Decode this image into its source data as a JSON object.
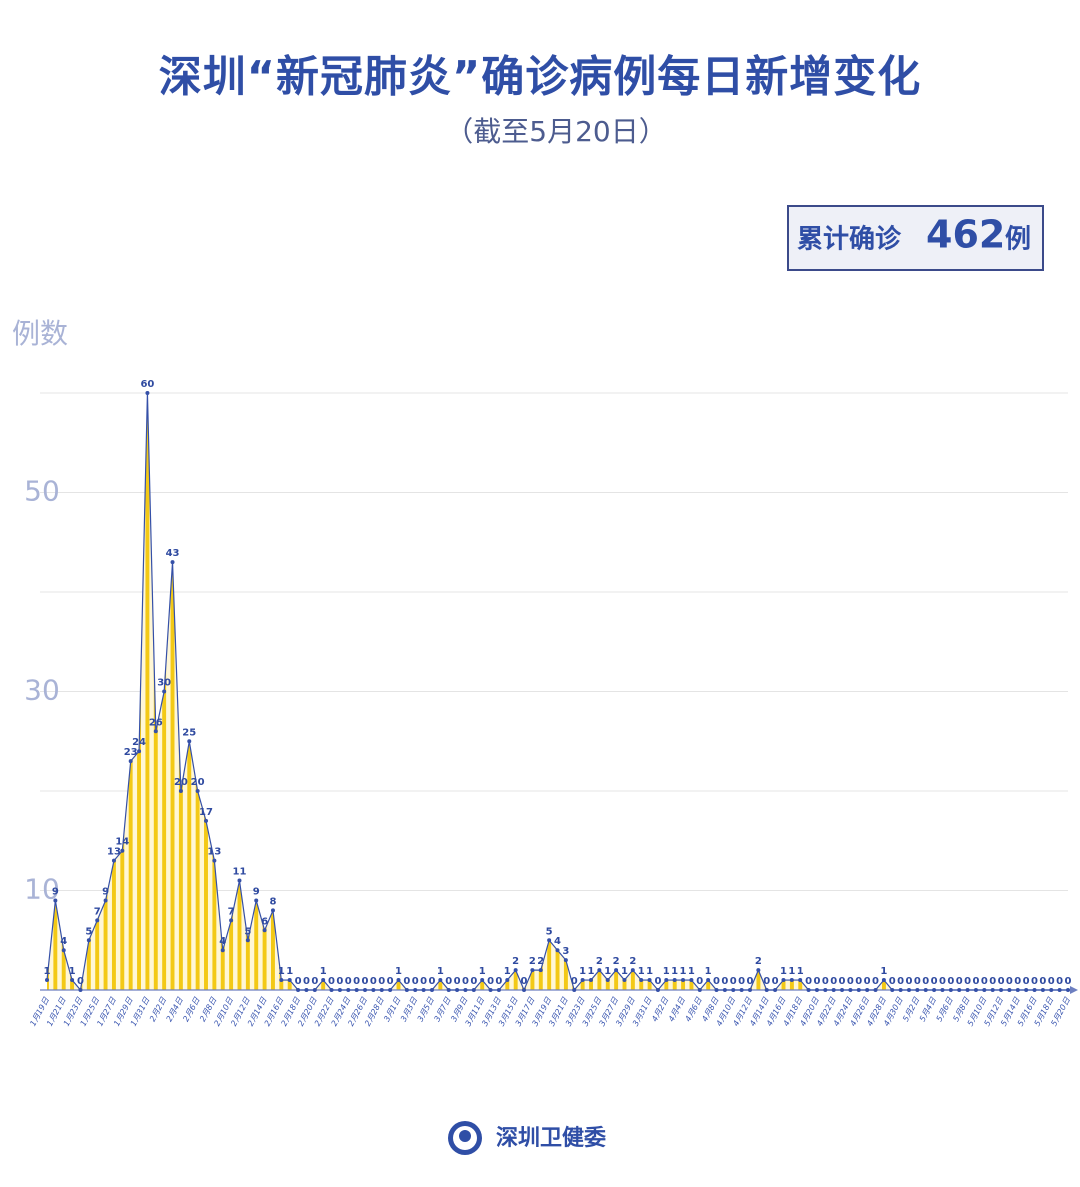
{
  "chart_data": {
    "type": "area",
    "title": "深圳“新冠肺炎”确诊病例每日新增变化",
    "subtitle": "（截至5月20日）",
    "y_label": "例数",
    "total": {
      "prefix": "累计确诊",
      "value": 462,
      "suffix": "例"
    },
    "source": "深圳卫健委",
    "categories": [
      "1月19日",
      null,
      "1月21日",
      null,
      "1月23日",
      null,
      "1月25日",
      null,
      "1月27日",
      null,
      "1月29日",
      null,
      "1月31日",
      null,
      "2月2日",
      null,
      "2月4日",
      null,
      "2月6日",
      null,
      "2月8日",
      null,
      "2月10日",
      null,
      "2月12日",
      null,
      "2月14日",
      null,
      "2月16日",
      null,
      "2月18日",
      null,
      "2月20日",
      null,
      "2月22日",
      null,
      "2月24日",
      null,
      "2月26日",
      null,
      "2月28日",
      null,
      "3月1日",
      null,
      "3月3日",
      null,
      "3月5日",
      null,
      "3月7日",
      null,
      "3月9日",
      null,
      "3月11日",
      null,
      "3月13日",
      null,
      "3月15日",
      null,
      "3月17日",
      null,
      "3月19日",
      null,
      "3月21日",
      null,
      "3月23日",
      null,
      "3月25日",
      null,
      "3月27日",
      null,
      "3月29日",
      null,
      "3月31日",
      null,
      "4月2日",
      null,
      "4月4日",
      null,
      "4月6日",
      null,
      "4月8日",
      null,
      "4月10日",
      null,
      "4月12日",
      null,
      "4月14日",
      null,
      "4月16日",
      null,
      "4月18日",
      null,
      "4月20日",
      null,
      "4月22日",
      null,
      "4月24日",
      null,
      "4月26日",
      null,
      "4月28日",
      null,
      "4月30日",
      null,
      "5月2日",
      null,
      "5月4日",
      null,
      "5月6日",
      null,
      "5月8日",
      null,
      "5月10日",
      null,
      "5月12日",
      null,
      "5月14日",
      null,
      "5月16日",
      null,
      "5月18日",
      null,
      "5月20日"
    ],
    "values": [
      1,
      9,
      4,
      1,
      0,
      5,
      7,
      9,
      13,
      14,
      23,
      24,
      60,
      26,
      30,
      43,
      20,
      25,
      20,
      17,
      13,
      4,
      7,
      11,
      5,
      9,
      6,
      8,
      1,
      1,
      0,
      0,
      0,
      1,
      0,
      0,
      0,
      0,
      0,
      0,
      0,
      0,
      1,
      0,
      0,
      0,
      0,
      1,
      0,
      0,
      0,
      0,
      1,
      0,
      0,
      1,
      2,
      0,
      2,
      2,
      5,
      4,
      3,
      0,
      1,
      1,
      2,
      1,
      2,
      1,
      2,
      1,
      1,
      0,
      1,
      1,
      1,
      1,
      0,
      1,
      0,
      0,
      0,
      0,
      0,
      2,
      0,
      0,
      1,
      1,
      1,
      0,
      0,
      0,
      0,
      0,
      0,
      0,
      0,
      0,
      1,
      0,
      0,
      0,
      0,
      0,
      0,
      0,
      0,
      0,
      0,
      0,
      0,
      0,
      0,
      0,
      0,
      0,
      0,
      0,
      0,
      0,
      0
    ],
    "ylim": [
      0,
      60
    ],
    "yticks": [
      10,
      30,
      50
    ],
    "minor_yticks": [
      20,
      40,
      60
    ],
    "grid": true,
    "color": "#f3c916",
    "line_color": "#3550a8"
  }
}
